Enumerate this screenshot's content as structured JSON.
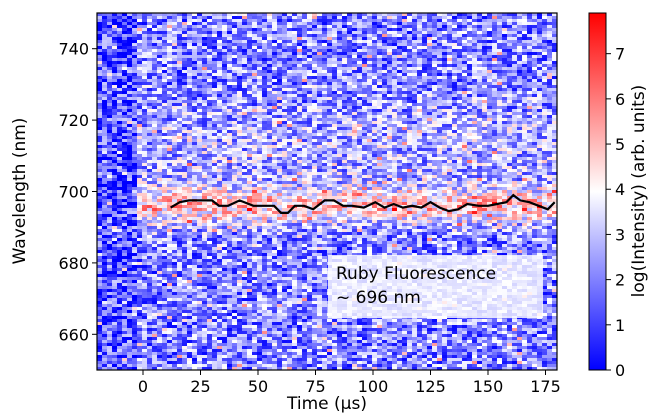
{
  "chart_data": {
    "type": "heatmap",
    "xlabel": "Time (μs)",
    "ylabel": "Wavelength (nm)",
    "colorbar_label": "log(Intensity) (arb. units)",
    "xlim": [
      -20,
      180
    ],
    "ylim": [
      650,
      750
    ],
    "clim": [
      0,
      7.9
    ],
    "colormap": [
      "#0000ff",
      "#ffffff",
      "#ff0000"
    ],
    "x_ticks": [
      0,
      25,
      50,
      75,
      100,
      125,
      150,
      175
    ],
    "y_ticks": [
      660,
      680,
      700,
      720,
      740
    ],
    "colorbar_ticks": [
      0,
      1,
      2,
      3,
      4,
      5,
      6,
      7
    ],
    "fluorescence_band": {
      "center_nm": 696,
      "half_width_nm": 5,
      "start_time_us": -3
    },
    "peak_trace": {
      "color": "#000000",
      "x": [
        12,
        16,
        20,
        25,
        30,
        33,
        37,
        42,
        48,
        52,
        57,
        60,
        63,
        66,
        70,
        74,
        79,
        83,
        87,
        91,
        96,
        101,
        105,
        109,
        113,
        117,
        121,
        125,
        129,
        133,
        137,
        141,
        146,
        150,
        154,
        158,
        161,
        164,
        168,
        172,
        176,
        179
      ],
      "y": [
        695.5,
        697.0,
        697.5,
        697.5,
        697.5,
        696.0,
        696.0,
        697.5,
        696.0,
        696.0,
        696.0,
        694.0,
        694.0,
        696.0,
        696.0,
        695.0,
        697.5,
        697.5,
        696.0,
        696.0,
        695.5,
        697.0,
        695.5,
        696.5,
        695.5,
        696.0,
        695.5,
        697.0,
        695.5,
        694.5,
        695.0,
        696.5,
        696.0,
        696.0,
        696.5,
        697.0,
        699.0,
        697.5,
        697.0,
        696.0,
        695.0,
        697.0
      ]
    },
    "annotation": {
      "line1": "Ruby Fluorescence",
      "line2": "~ 696 nm"
    }
  }
}
